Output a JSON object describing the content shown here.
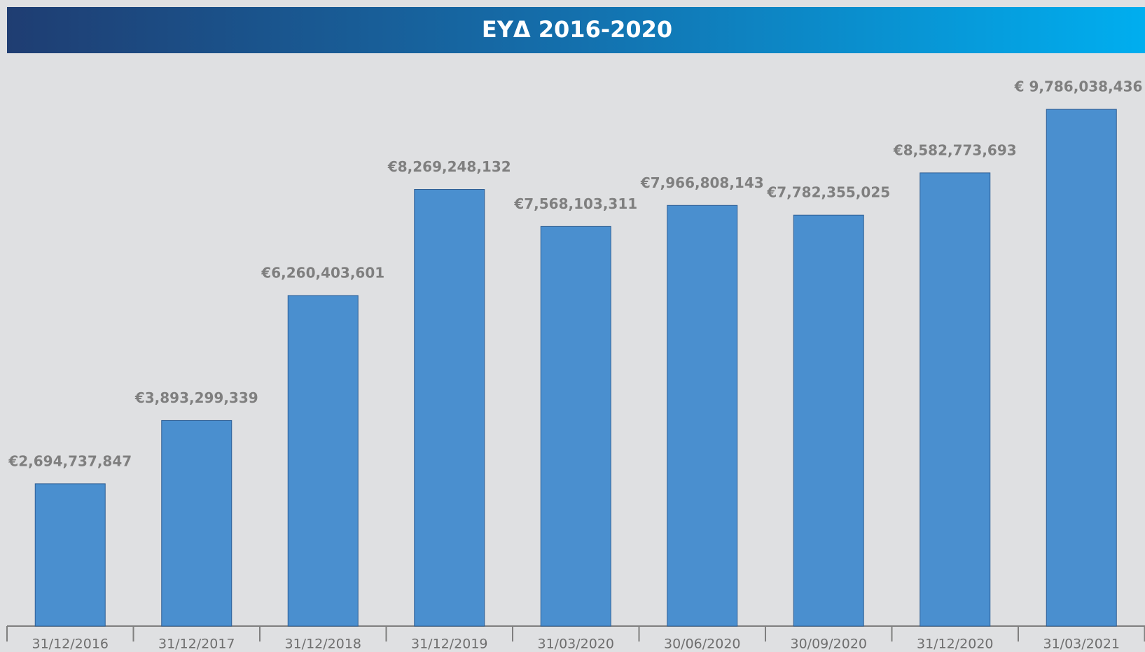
{
  "chart_data": {
    "type": "bar",
    "title": "ΕΥΔ 2016-2020",
    "categories": [
      "31/12/2016",
      "31/12/2017",
      "31/12/2018",
      "31/12/2019",
      "31/03/2020",
      "30/06/2020",
      "30/09/2020",
      "31/12/2020",
      "31/03/2021"
    ],
    "values": [
      2694737847,
      3893299339,
      6260403601,
      8269248132,
      7568103311,
      7966808143,
      7782355025,
      8582773693,
      9786038436
    ],
    "value_labels": [
      "€2,694,737,847",
      "€3,893,299,339",
      "€6,260,403,601",
      "€8,269,248,132",
      "€7,568,103,311",
      "€7,966,808,143",
      "€7,782,355,025",
      "€8,582,773,693",
      "€ 9,786,038,436"
    ],
    "color": "#4a8fcf",
    "ylim": [
      0,
      10000000000
    ]
  }
}
